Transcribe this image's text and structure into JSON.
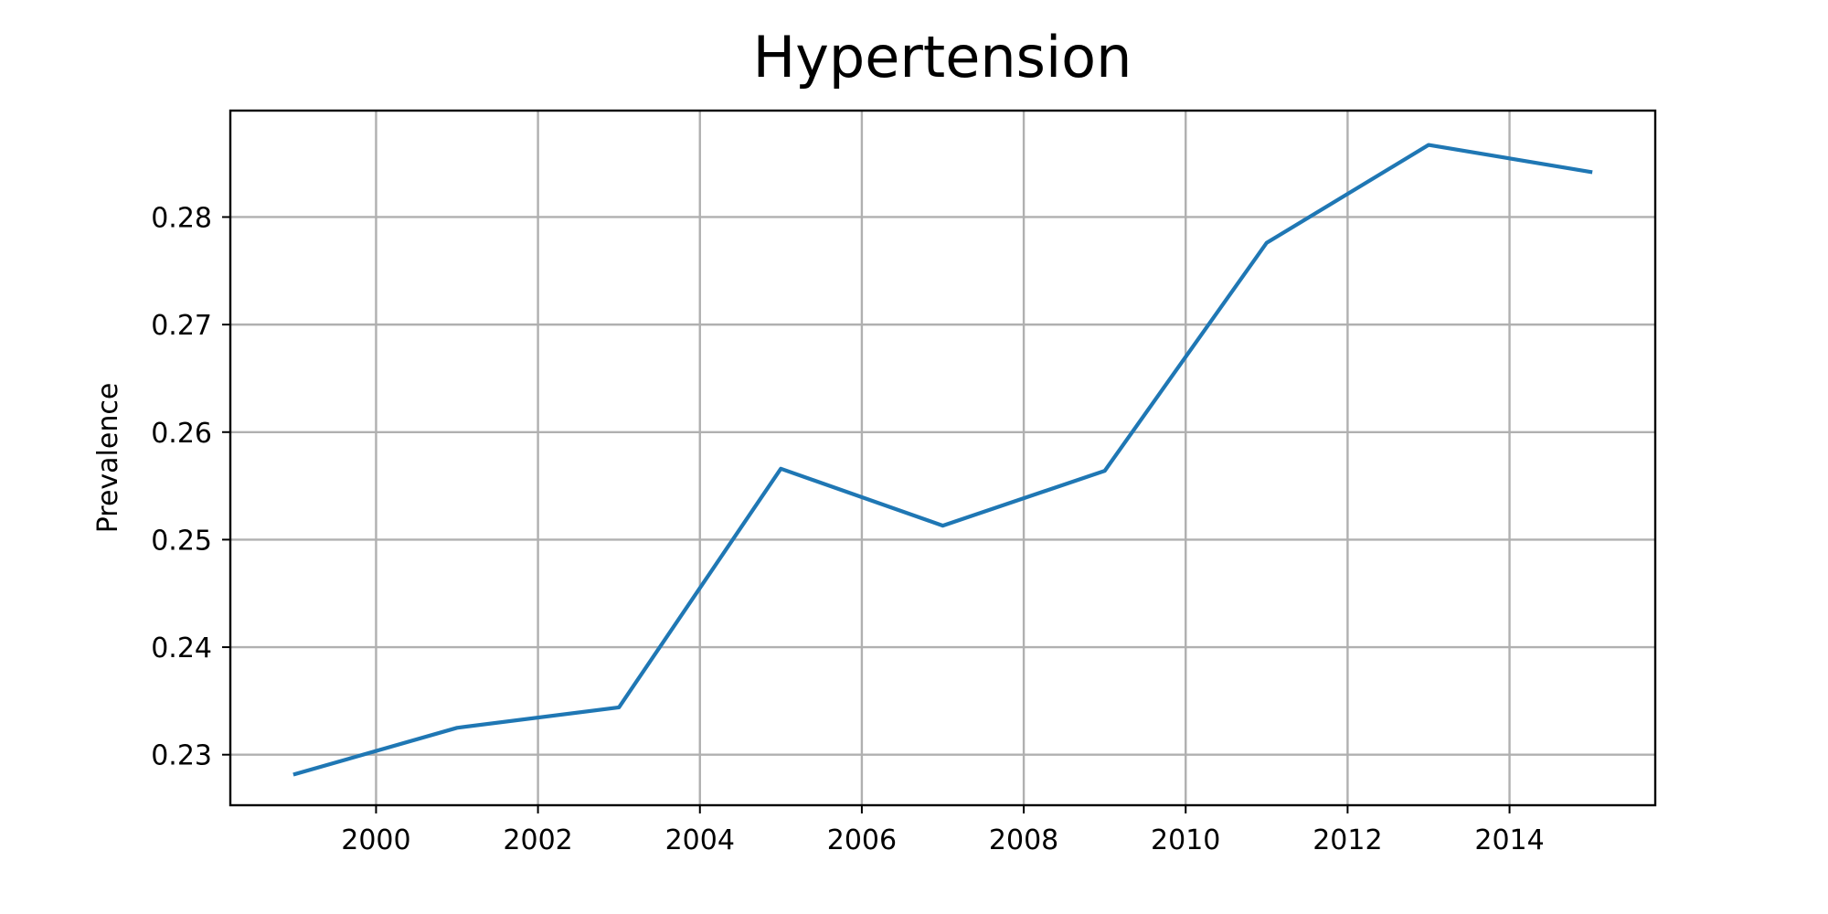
{
  "chart_data": {
    "type": "line",
    "title": "Hypertension",
    "xlabel": "",
    "ylabel": "Prevalence",
    "x": [
      1999,
      2001,
      2003,
      2005,
      2007,
      2009,
      2011,
      2013,
      2015
    ],
    "series": [
      {
        "values": [
          0.2282,
          0.2325,
          0.2344,
          0.2566,
          0.2513,
          0.2564,
          0.2776,
          0.2867,
          0.2842
        ],
        "color": "#1f77b4"
      }
    ],
    "xticks": [
      2000,
      2002,
      2004,
      2006,
      2008,
      2010,
      2012,
      2014
    ],
    "yticks": [
      0.23,
      0.24,
      0.25,
      0.26,
      0.27,
      0.28
    ],
    "ytick_labels": [
      "0.23",
      "0.24",
      "0.25",
      "0.26",
      "0.27",
      "0.28"
    ],
    "xlim": [
      1998.2,
      2015.8
    ],
    "ylim": [
      0.2253,
      0.2899
    ],
    "grid": true,
    "legend": "none"
  }
}
